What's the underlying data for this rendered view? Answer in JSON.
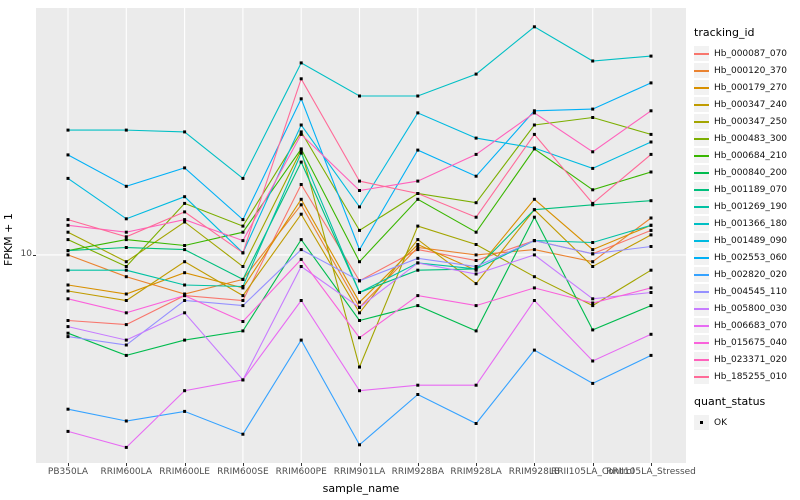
{
  "colors": {
    "panel_bg": "#EBEBEB",
    "grid": "#FFFFFF",
    "axis_text": "#4D4D4D",
    "title_text": "#000000",
    "point": "#000000",
    "legend_key_bg": "#F2F2F2"
  },
  "axes": {
    "y_title": "FPKM + 1",
    "x_title": "sample_name",
    "y_tick_label": "10"
  },
  "legend": {
    "tracking_title": "tracking_id",
    "quant_title": "quant_status",
    "quant_items": [
      {
        "label": "OK"
      }
    ]
  },
  "chart_data": {
    "type": "line",
    "title": "",
    "xlabel": "sample_name",
    "ylabel": "FPKM + 1",
    "y_scale": "log10",
    "ylim": [
      1.5,
      95
    ],
    "y_ticks": [
      10
    ],
    "grid": "major",
    "legend_position": "right",
    "point_shape": "square",
    "x_categories": [
      "PB350LA",
      "RRIM600LA",
      "RRIM600LE",
      "RRIM600SE",
      "RRIM600PE",
      "RRIM901LA",
      "RRIM928BA",
      "RRIM928LA",
      "RRIM928LB",
      "RRII105LA_Control",
      "RRII105LA_Stressed"
    ],
    "series": [
      {
        "name": "Hb_000087_070",
        "color": "#F8766D",
        "values": [
          5.5,
          5.3,
          6.9,
          6.6,
          19.0,
          7.9,
          10.5,
          9.5,
          11.4,
          10.1,
          12.5
        ]
      },
      {
        "name": "Hb_000120_370",
        "color": "#EA8331",
        "values": [
          10.0,
          8.2,
          7.0,
          8.0,
          15.8,
          6.2,
          10.7,
          10.0,
          10.5,
          9.4,
          14.0
        ]
      },
      {
        "name": "Hb_000179_270",
        "color": "#D89000",
        "values": [
          7.6,
          7.0,
          8.5,
          7.4,
          16.6,
          6.5,
          11.0,
          8.7,
          16.6,
          10.5,
          13.1
        ]
      },
      {
        "name": "Hb_000347_240",
        "color": "#C09B00",
        "values": [
          7.2,
          6.6,
          9.4,
          6.9,
          14.5,
          5.9,
          11.5,
          7.7,
          15.1,
          9.0,
          12.0
        ]
      },
      {
        "name": "Hb_000347_250",
        "color": "#A3A500",
        "values": [
          12.3,
          9.4,
          13.5,
          9.0,
          26.0,
          3.6,
          13.0,
          11.0,
          8.2,
          6.3,
          8.7
        ]
      },
      {
        "name": "Hb_000483_300",
        "color": "#7CAE00",
        "values": [
          11.5,
          9.0,
          16.0,
          13.0,
          30.7,
          12.5,
          17.5,
          16.1,
          32.7,
          35.0,
          30.0
        ]
      },
      {
        "name": "Hb_000684_210",
        "color": "#39B600",
        "values": [
          10.4,
          11.5,
          10.9,
          12.3,
          26.3,
          9.4,
          16.6,
          12.3,
          26.3,
          18.1,
          21.3
        ]
      },
      {
        "name": "Hb_000840_200",
        "color": "#00BB4E",
        "values": [
          4.9,
          4.0,
          4.6,
          5.0,
          11.5,
          5.5,
          6.3,
          5.0,
          14.1,
          5.05,
          6.3
        ]
      },
      {
        "name": "Hb_001189_070",
        "color": "#00BF7D",
        "values": [
          10.4,
          10.7,
          10.5,
          8.0,
          23.3,
          7.1,
          8.7,
          8.8,
          15.1,
          15.8,
          16.4
        ]
      },
      {
        "name": "Hb_001269_190",
        "color": "#00C1A3",
        "values": [
          8.7,
          8.7,
          7.6,
          7.5,
          25.3,
          7.1,
          9.3,
          8.8,
          11.4,
          11.2,
          13.1
        ]
      },
      {
        "name": "Hb_001366_180",
        "color": "#00BFC4",
        "values": [
          31.2,
          31.2,
          30.7,
          20.1,
          57.6,
          42.6,
          42.6,
          52.0,
          80.0,
          58.6,
          61.3
        ]
      },
      {
        "name": "Hb_001489_090",
        "color": "#00BAE0",
        "values": [
          20.1,
          13.9,
          17.0,
          10.2,
          32.7,
          15.5,
          36.5,
          29.0,
          26.5,
          22.0,
          28.0
        ]
      },
      {
        "name": "Hb_002553_060",
        "color": "#00B0F6",
        "values": [
          24.9,
          18.7,
          22.1,
          13.8,
          41.5,
          10.5,
          26.0,
          20.5,
          37.2,
          37.8,
          48.0
        ]
      },
      {
        "name": "Hb_002820_020",
        "color": "#35A2FF",
        "values": [
          2.45,
          2.2,
          2.4,
          1.95,
          4.6,
          1.77,
          2.8,
          2.15,
          4.2,
          3.1,
          4.0
        ]
      },
      {
        "name": "Hb_004545_110",
        "color": "#9590FF",
        "values": [
          4.75,
          4.4,
          6.6,
          6.3,
          10.5,
          7.9,
          9.7,
          9.0,
          11.4,
          10.1,
          10.8
        ]
      },
      {
        "name": "Hb_005800_030",
        "color": "#C77CFF",
        "values": [
          5.2,
          4.6,
          5.9,
          3.2,
          9.0,
          6.2,
          9.3,
          8.4,
          10.0,
          6.7,
          7.1
        ]
      },
      {
        "name": "Hb_006683_070",
        "color": "#E76BF3",
        "values": [
          2.0,
          1.73,
          2.9,
          3.2,
          6.6,
          2.9,
          3.05,
          3.05,
          6.6,
          3.8,
          4.85
        ]
      },
      {
        "name": "Hb_015675_040",
        "color": "#FA62DB",
        "values": [
          6.7,
          5.9,
          6.9,
          5.45,
          9.6,
          4.7,
          6.9,
          6.3,
          7.4,
          6.45,
          7.4
        ]
      },
      {
        "name": "Hb_023371_020",
        "color": "#FF62BC",
        "values": [
          13.1,
          12.3,
          13.8,
          11.4,
          30.0,
          18.0,
          19.6,
          25.0,
          36.5,
          25.6,
          37.2
        ]
      },
      {
        "name": "Hb_185255_010",
        "color": "#FF6A98",
        "values": [
          13.8,
          11.8,
          14.8,
          10.2,
          49.8,
          19.6,
          17.5,
          14.1,
          30.0,
          16.0,
          25.0
        ]
      }
    ]
  }
}
